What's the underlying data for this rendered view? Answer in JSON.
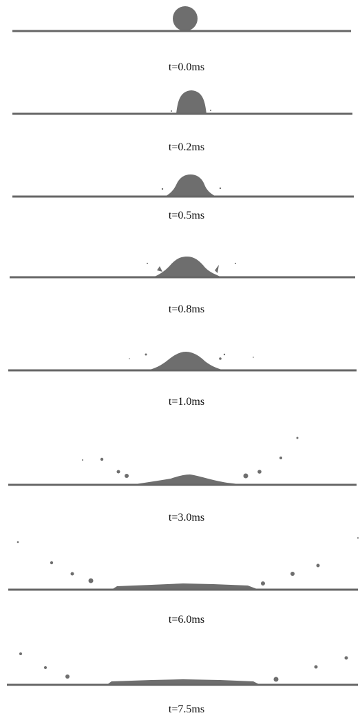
{
  "frames": [
    {
      "label": "t=0.0ms"
    },
    {
      "label": "t=0.2ms"
    },
    {
      "label": "t=0.5ms"
    },
    {
      "label": "t=0.8ms"
    },
    {
      "label": "t=1.0ms"
    },
    {
      "label": "t=3.0ms"
    },
    {
      "label": "t=6.0ms"
    },
    {
      "label": "t=7.5ms"
    }
  ]
}
